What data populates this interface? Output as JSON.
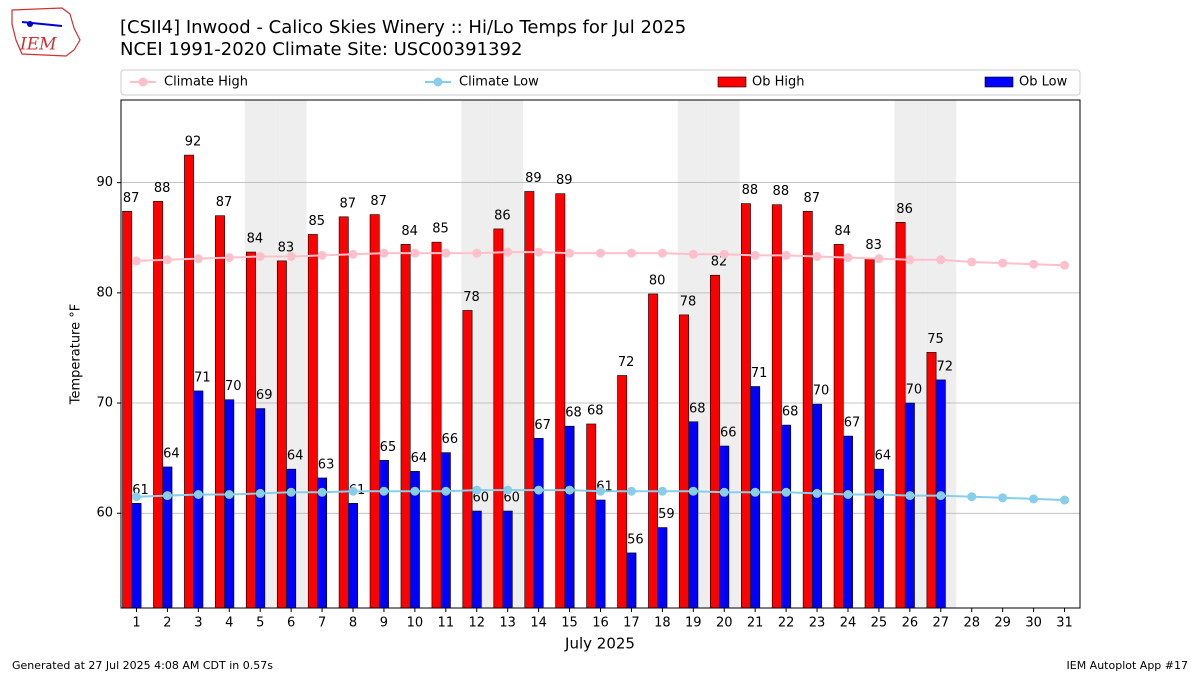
{
  "chart_data": {
    "type": "bar",
    "title": "[CSII4] Inwood - Calico Skies Winery :: Hi/Lo Temps for Jul 2025",
    "subtitle": "NCEI 1991-2020 Climate Site: USC00391392",
    "logo_text": "IEM",
    "xlabel": "July 2025",
    "ylabel": "Temperature °F",
    "footer_left": "Generated at 27 Jul 2025 4:08 AM CDT in 0.57s",
    "footer_right": "IEM Autoplot App #17",
    "x": [
      1,
      2,
      3,
      4,
      5,
      6,
      7,
      8,
      9,
      10,
      11,
      12,
      13,
      14,
      15,
      16,
      17,
      18,
      19,
      20,
      21,
      22,
      23,
      24,
      25,
      26,
      27,
      28,
      29,
      30,
      31
    ],
    "xlim": [
      0.5,
      31.5
    ],
    "xticks": [
      1,
      2,
      3,
      4,
      5,
      6,
      7,
      8,
      9,
      10,
      11,
      12,
      13,
      14,
      15,
      16,
      17,
      18,
      19,
      20,
      21,
      22,
      23,
      24,
      25,
      26,
      27,
      28,
      29,
      30,
      31
    ],
    "ylim": [
      51.4,
      97.5
    ],
    "yticks": [
      60,
      70,
      80,
      90
    ],
    "grid": true,
    "legend": "top-expanded",
    "shaded_days": [
      5,
      6,
      12,
      13,
      19,
      20,
      26,
      27
    ],
    "series": [
      {
        "name": "Climate High",
        "kind": "line",
        "color": "#ffc0cb",
        "values": [
          82.9,
          83.0,
          83.1,
          83.2,
          83.3,
          83.3,
          83.4,
          83.5,
          83.6,
          83.6,
          83.6,
          83.6,
          83.7,
          83.7,
          83.6,
          83.6,
          83.6,
          83.6,
          83.5,
          83.5,
          83.4,
          83.4,
          83.3,
          83.2,
          83.1,
          83.0,
          83.0,
          82.8,
          82.7,
          82.6,
          82.5
        ]
      },
      {
        "name": "Climate Low",
        "kind": "line",
        "color": "#87ceeb",
        "values": [
          61.5,
          61.6,
          61.7,
          61.7,
          61.8,
          61.9,
          61.9,
          62.0,
          62.0,
          62.0,
          62.0,
          62.1,
          62.1,
          62.1,
          62.1,
          62.0,
          62.0,
          62.0,
          62.0,
          61.9,
          61.9,
          61.9,
          61.8,
          61.7,
          61.7,
          61.6,
          61.6,
          61.5,
          61.4,
          61.3,
          61.2
        ]
      },
      {
        "name": "Ob High",
        "kind": "bar",
        "color": "#ff0000",
        "values": [
          87.4,
          88.3,
          92.5,
          87.0,
          83.7,
          82.9,
          85.3,
          86.9,
          87.1,
          84.4,
          84.6,
          78.4,
          85.8,
          89.2,
          89.0,
          68.1,
          72.5,
          79.9,
          78.0,
          81.6,
          88.1,
          88.0,
          87.4,
          84.4,
          83.1,
          86.4,
          74.6,
          null,
          null,
          null,
          null
        ],
        "value_labels": [
          "87",
          "88",
          "92",
          "87",
          "84",
          "83",
          "85",
          "87",
          "87",
          "84",
          "85",
          "78",
          "86",
          "89",
          "89",
          "68",
          "72",
          "80",
          "78",
          "82",
          "88",
          "88",
          "87",
          "84",
          "83",
          "86",
          "75",
          null,
          null,
          null,
          null
        ]
      },
      {
        "name": "Ob Low",
        "kind": "bar",
        "color": "#0000ff",
        "values": [
          60.9,
          64.2,
          71.1,
          70.3,
          69.5,
          64.0,
          63.2,
          60.9,
          64.8,
          63.8,
          65.5,
          60.2,
          60.2,
          66.8,
          67.9,
          61.2,
          56.4,
          58.7,
          68.3,
          66.1,
          71.5,
          68.0,
          69.9,
          67.0,
          64.0,
          70.0,
          72.1,
          null,
          null,
          null,
          null
        ],
        "value_labels": [
          "61",
          "64",
          "71",
          "70",
          "69",
          "64",
          "63",
          "61",
          "65",
          "64",
          "66",
          "60",
          "60",
          "67",
          "68",
          "61",
          "56",
          "59",
          "68",
          "66",
          "71",
          "68",
          "70",
          "67",
          "64",
          "70",
          "72",
          null,
          null,
          null,
          null
        ]
      }
    ]
  }
}
